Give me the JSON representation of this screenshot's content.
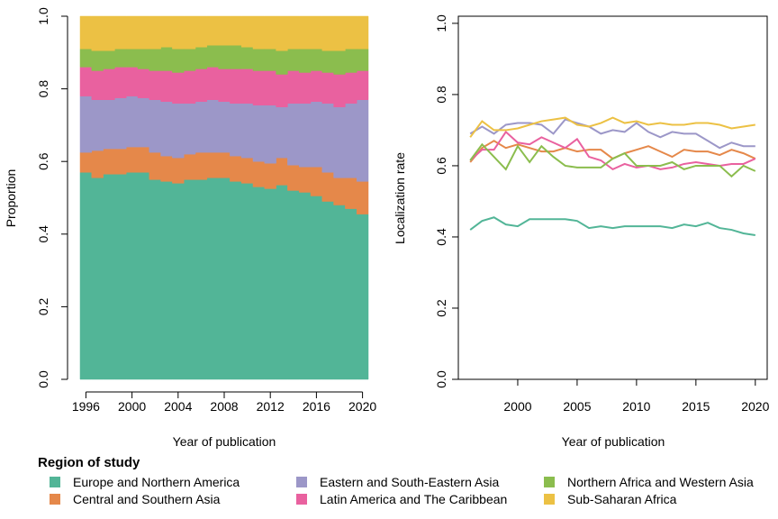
{
  "legend": {
    "title": "Region of study",
    "entries": [
      {
        "name": "Europe and Northern America",
        "color": "#52b597"
      },
      {
        "name": "Central and Southern Asia",
        "color": "#e5884a"
      },
      {
        "name": "Eastern and South-Eastern Asia",
        "color": "#9c97c8"
      },
      {
        "name": "Latin America and The Caribbean",
        "color": "#e9619f"
      },
      {
        "name": "Northern Africa and Western Asia",
        "color": "#8bbd4e"
      },
      {
        "name": "Sub-Saharan Africa",
        "color": "#ecc144"
      }
    ]
  },
  "chart_data": [
    {
      "type": "area",
      "stacked": true,
      "xlabel": "Year of publication",
      "ylabel": "Proportion",
      "xlim": [
        1995,
        2021
      ],
      "ylim": [
        0,
        1
      ],
      "xticks": [
        1996,
        2000,
        2004,
        2008,
        2012,
        2016,
        2020
      ],
      "yticks": [
        0.0,
        0.2,
        0.4,
        0.6,
        0.8,
        1.0
      ],
      "x": [
        1996,
        1997,
        1998,
        1999,
        2000,
        2001,
        2002,
        2003,
        2004,
        2005,
        2006,
        2007,
        2008,
        2009,
        2010,
        2011,
        2012,
        2013,
        2014,
        2015,
        2016,
        2017,
        2018,
        2019,
        2020
      ],
      "series": [
        {
          "name": "Europe and Northern America",
          "color": "#52b597",
          "values": [
            0.57,
            0.555,
            0.565,
            0.565,
            0.57,
            0.57,
            0.55,
            0.545,
            0.54,
            0.55,
            0.55,
            0.555,
            0.555,
            0.545,
            0.54,
            0.53,
            0.525,
            0.535,
            0.52,
            0.515,
            0.505,
            0.49,
            0.48,
            0.47,
            0.455
          ]
        },
        {
          "name": "Central and Southern Asia",
          "color": "#e5884a",
          "values": [
            0.055,
            0.075,
            0.07,
            0.07,
            0.07,
            0.07,
            0.075,
            0.07,
            0.07,
            0.07,
            0.075,
            0.07,
            0.07,
            0.07,
            0.07,
            0.07,
            0.07,
            0.075,
            0.07,
            0.07,
            0.08,
            0.08,
            0.075,
            0.085,
            0.09
          ]
        },
        {
          "name": "Eastern and South-Eastern Asia",
          "color": "#9c97c8",
          "values": [
            0.155,
            0.14,
            0.135,
            0.14,
            0.14,
            0.135,
            0.145,
            0.15,
            0.15,
            0.14,
            0.14,
            0.145,
            0.14,
            0.145,
            0.15,
            0.155,
            0.16,
            0.14,
            0.17,
            0.175,
            0.18,
            0.19,
            0.195,
            0.205,
            0.225
          ]
        },
        {
          "name": "Latin America and The Caribbean",
          "color": "#e9619f",
          "values": [
            0.08,
            0.08,
            0.085,
            0.085,
            0.08,
            0.08,
            0.08,
            0.085,
            0.085,
            0.09,
            0.09,
            0.09,
            0.09,
            0.095,
            0.095,
            0.095,
            0.095,
            0.09,
            0.09,
            0.085,
            0.085,
            0.085,
            0.09,
            0.085,
            0.08
          ]
        },
        {
          "name": "Northern Africa and Western Asia",
          "color": "#8bbd4e",
          "values": [
            0.05,
            0.055,
            0.05,
            0.05,
            0.05,
            0.055,
            0.06,
            0.065,
            0.065,
            0.06,
            0.06,
            0.06,
            0.065,
            0.065,
            0.06,
            0.06,
            0.06,
            0.065,
            0.06,
            0.065,
            0.06,
            0.06,
            0.065,
            0.065,
            0.06
          ]
        },
        {
          "name": "Sub-Saharan Africa",
          "color": "#ecc144",
          "values": [
            0.09,
            0.095,
            0.095,
            0.09,
            0.09,
            0.09,
            0.09,
            0.085,
            0.09,
            0.09,
            0.085,
            0.08,
            0.08,
            0.08,
            0.085,
            0.09,
            0.09,
            0.095,
            0.09,
            0.09,
            0.09,
            0.095,
            0.095,
            0.09,
            0.09
          ]
        }
      ]
    },
    {
      "type": "line",
      "xlabel": "Year of publication",
      "ylabel": "Localization rate",
      "xlim": [
        1995,
        2021
      ],
      "ylim": [
        0,
        1.02
      ],
      "xticks": [
        2000,
        2005,
        2010,
        2015,
        2020
      ],
      "yticks": [
        0.0,
        0.2,
        0.4,
        0.6,
        0.8,
        1.0
      ],
      "x": [
        1996,
        1997,
        1998,
        1999,
        2000,
        2001,
        2002,
        2003,
        2004,
        2005,
        2006,
        2007,
        2008,
        2009,
        2010,
        2011,
        2012,
        2013,
        2014,
        2015,
        2016,
        2017,
        2018,
        2019,
        2020
      ],
      "series": [
        {
          "name": "Europe and Northern America",
          "color": "#52b597",
          "values": [
            0.42,
            0.445,
            0.455,
            0.435,
            0.43,
            0.45,
            0.45,
            0.45,
            0.45,
            0.445,
            0.425,
            0.43,
            0.425,
            0.43,
            0.43,
            0.43,
            0.43,
            0.425,
            0.435,
            0.43,
            0.44,
            0.425,
            0.42,
            0.41,
            0.405
          ]
        },
        {
          "name": "Central and Southern Asia",
          "color": "#e5884a",
          "values": [
            0.61,
            0.65,
            0.67,
            0.65,
            0.66,
            0.65,
            0.64,
            0.64,
            0.65,
            0.64,
            0.645,
            0.645,
            0.62,
            0.635,
            0.645,
            0.655,
            0.64,
            0.625,
            0.645,
            0.64,
            0.64,
            0.63,
            0.645,
            0.635,
            0.62
          ]
        },
        {
          "name": "Eastern and South-Eastern Asia",
          "color": "#9c97c8",
          "values": [
            0.69,
            0.71,
            0.69,
            0.715,
            0.72,
            0.72,
            0.715,
            0.69,
            0.73,
            0.72,
            0.71,
            0.69,
            0.7,
            0.695,
            0.72,
            0.695,
            0.68,
            0.695,
            0.69,
            0.69,
            0.67,
            0.65,
            0.665,
            0.655,
            0.655
          ]
        },
        {
          "name": "Latin America and The Caribbean",
          "color": "#e9619f",
          "values": [
            0.615,
            0.645,
            0.645,
            0.695,
            0.665,
            0.66,
            0.68,
            0.665,
            0.65,
            0.675,
            0.625,
            0.615,
            0.59,
            0.605,
            0.595,
            0.6,
            0.59,
            0.595,
            0.605,
            0.61,
            0.605,
            0.6,
            0.605,
            0.605,
            0.62
          ]
        },
        {
          "name": "Northern Africa and Western Asia",
          "color": "#8bbd4e",
          "values": [
            0.615,
            0.66,
            0.625,
            0.59,
            0.655,
            0.61,
            0.655,
            0.625,
            0.6,
            0.595,
            0.595,
            0.595,
            0.62,
            0.635,
            0.6,
            0.6,
            0.6,
            0.61,
            0.59,
            0.6,
            0.6,
            0.6,
            0.57,
            0.6,
            0.585
          ]
        },
        {
          "name": "Sub-Saharan Africa",
          "color": "#ecc144",
          "values": [
            0.68,
            0.725,
            0.7,
            0.7,
            0.705,
            0.715,
            0.725,
            0.73,
            0.735,
            0.715,
            0.71,
            0.72,
            0.735,
            0.72,
            0.725,
            0.715,
            0.72,
            0.715,
            0.715,
            0.72,
            0.72,
            0.715,
            0.705,
            0.71,
            0.715
          ]
        }
      ]
    }
  ]
}
